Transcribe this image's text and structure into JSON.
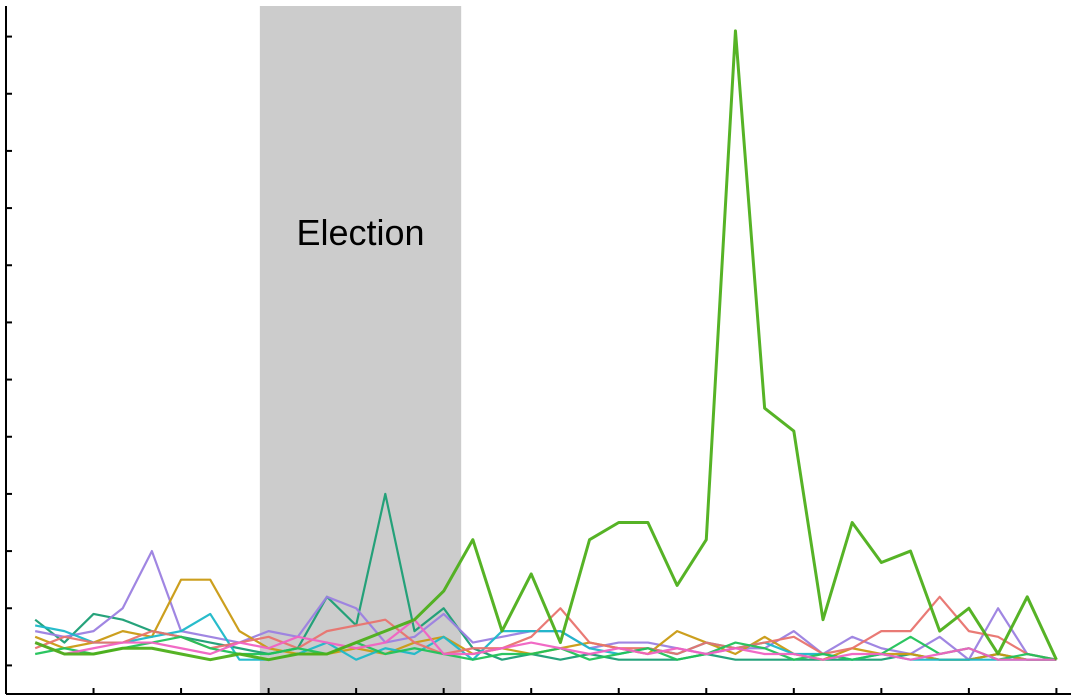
{
  "chart_data": {
    "type": "line",
    "title": "",
    "xlabel": "",
    "ylabel": "",
    "xlim": [
      0,
      36.5
    ],
    "ylim": [
      -0.5,
      11.5
    ],
    "y_ticks": [
      0,
      1,
      2,
      3,
      4,
      5,
      6,
      7,
      8,
      9,
      10,
      11
    ],
    "x_ticks": [
      3,
      6,
      9,
      12,
      15,
      18,
      21,
      24,
      27,
      30,
      33,
      36
    ],
    "grid": false,
    "legend": "none",
    "annotation": {
      "label": "Election",
      "x_start": 8.7,
      "x_end": 15.6,
      "color": "#cccccc"
    },
    "x": [
      1,
      2,
      3,
      4,
      5,
      6,
      7,
      8,
      9,
      10,
      11,
      12,
      13,
      14,
      15,
      16,
      17,
      18,
      19,
      20,
      21,
      22,
      23,
      24,
      25,
      26,
      27,
      28,
      29,
      30,
      31,
      32,
      33,
      34,
      35,
      36
    ],
    "series": [
      {
        "color": "#4daf1a",
        "values": [
          0.4,
          0.2,
          0.2,
          0.3,
          0.3,
          0.2,
          0.1,
          0.2,
          0.1,
          0.2,
          0.2,
          0.4,
          0.6,
          0.8,
          1.3,
          2.2,
          0.6,
          1.6,
          0.4,
          2.2,
          2.5,
          2.5,
          1.4,
          2.2,
          11.1,
          4.5,
          4.1,
          0.8,
          2.5,
          1.8,
          2.0,
          0.6,
          1.0,
          0.2,
          1.2,
          0.1
        ]
      },
      {
        "color": "#1a9e74",
        "values": [
          0.8,
          0.4,
          0.9,
          0.8,
          0.6,
          0.5,
          0.4,
          0.3,
          0.2,
          0.3,
          1.2,
          0.7,
          3.0,
          0.6,
          1.0,
          0.3,
          0.1,
          0.2,
          0.1,
          0.2,
          0.1,
          0.1,
          0.1,
          0.2,
          0.1,
          0.1,
          0.1,
          0.1,
          0.1,
          0.1,
          0.2,
          0.1,
          0.1,
          0.2,
          0.1,
          0.1
        ]
      },
      {
        "color": "#9b7fe0",
        "values": [
          0.6,
          0.5,
          0.6,
          1.0,
          2.0,
          0.6,
          0.5,
          0.4,
          0.6,
          0.5,
          1.2,
          1.0,
          0.4,
          0.5,
          0.9,
          0.4,
          0.5,
          0.6,
          0.6,
          0.3,
          0.4,
          0.4,
          0.3,
          0.2,
          0.3,
          0.3,
          0.6,
          0.2,
          0.5,
          0.3,
          0.2,
          0.5,
          0.1,
          1.0,
          0.2,
          0.1
        ]
      },
      {
        "color": "#c99a12",
        "values": [
          0.5,
          0.3,
          0.4,
          0.6,
          0.5,
          1.5,
          1.5,
          0.6,
          0.3,
          0.2,
          0.2,
          0.3,
          0.2,
          0.4,
          0.5,
          0.2,
          0.3,
          0.2,
          0.3,
          0.4,
          0.3,
          0.2,
          0.6,
          0.4,
          0.2,
          0.5,
          0.2,
          0.1,
          0.3,
          0.2,
          0.2,
          0.1,
          0.1,
          0.2,
          0.1,
          0.1
        ]
      },
      {
        "color": "#1cb8c8",
        "values": [
          0.7,
          0.6,
          0.4,
          0.4,
          0.5,
          0.6,
          0.9,
          0.1,
          0.1,
          0.2,
          0.4,
          0.1,
          0.3,
          0.2,
          0.5,
          0.1,
          0.6,
          0.6,
          0.6,
          0.3,
          0.2,
          0.3,
          0.2,
          0.4,
          0.3,
          0.4,
          0.2,
          0.2,
          0.1,
          0.2,
          0.1,
          0.1,
          0.1,
          0.1,
          0.1,
          0.1
        ]
      },
      {
        "color": "#e8736e",
        "values": [
          0.3,
          0.5,
          0.4,
          0.4,
          0.6,
          0.5,
          0.3,
          0.4,
          0.5,
          0.3,
          0.6,
          0.7,
          0.8,
          0.4,
          0.2,
          0.3,
          0.3,
          0.5,
          1.0,
          0.4,
          0.3,
          0.3,
          0.2,
          0.4,
          0.3,
          0.4,
          0.5,
          0.2,
          0.3,
          0.6,
          0.6,
          1.2,
          0.6,
          0.5,
          0.2,
          0.1
        ]
      },
      {
        "color": "#21c258",
        "values": [
          0.2,
          0.3,
          0.2,
          0.3,
          0.4,
          0.5,
          0.3,
          0.2,
          0.2,
          0.3,
          0.2,
          0.4,
          0.2,
          0.3,
          0.2,
          0.1,
          0.2,
          0.2,
          0.3,
          0.1,
          0.2,
          0.3,
          0.1,
          0.2,
          0.4,
          0.3,
          0.1,
          0.2,
          0.1,
          0.2,
          0.5,
          0.2,
          0.3,
          0.1,
          0.2,
          0.1
        ]
      },
      {
        "color": "#f062c2",
        "values": [
          0.4,
          0.2,
          0.3,
          0.4,
          0.4,
          0.3,
          0.2,
          0.4,
          0.3,
          0.5,
          0.4,
          0.3,
          0.4,
          0.8,
          0.2,
          0.2,
          0.3,
          0.4,
          0.3,
          0.2,
          0.3,
          0.2,
          0.3,
          0.2,
          0.3,
          0.2,
          0.2,
          0.1,
          0.2,
          0.2,
          0.1,
          0.2,
          0.3,
          0.1,
          0.1,
          0.1
        ]
      }
    ]
  }
}
